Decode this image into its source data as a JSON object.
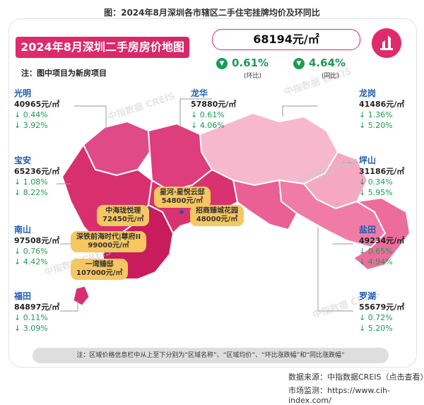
{
  "figure_title": "图：2024年8月深圳各市辖区二手住宅挂牌均价及环同比",
  "banner_title": "2024年8月深圳二手房房价地图",
  "note": "注：图中项目为新房项目",
  "city_average": "68194元/㎡",
  "mom_change": "0.61%",
  "mom_label": "(环比)",
  "yoy_change": "4.64%",
  "yoy_label": "(同比)",
  "down_arrow": "▼",
  "watermark": "中指数据 CREIS",
  "chart_data": {
    "type": "map",
    "title": "2024年8月深圳二手房房价地图",
    "unit": "元/㎡",
    "city_average": 68194,
    "city_mom_pct": -0.61,
    "city_yoy_pct": -4.64,
    "districts": [
      {
        "name": "光明",
        "price": 40965,
        "price_text": "40965元/㎡",
        "mom_text": "↓ 0.44%",
        "yoy_text": "↓ 3.92%",
        "mom": -0.44,
        "yoy": -3.92
      },
      {
        "name": "宝安",
        "price": 65236,
        "price_text": "65236元/㎡",
        "mom_text": "↓ 1.08%",
        "yoy_text": "↓ 8.22%",
        "mom": -1.08,
        "yoy": -8.22
      },
      {
        "name": "南山",
        "price": 97508,
        "price_text": "97508元/㎡",
        "mom_text": "↓ 0.76%",
        "yoy_text": "↓ 4.42%",
        "mom": -0.76,
        "yoy": -4.42
      },
      {
        "name": "福田",
        "price": 84897,
        "price_text": "84897元/㎡",
        "mom_text": "↓ 0.11%",
        "yoy_text": "↓ 3.09%",
        "mom": -0.11,
        "yoy": -3.09
      },
      {
        "name": "龙华",
        "price": 57880,
        "price_text": "57880元/㎡",
        "mom_text": "↓ 0.61%",
        "yoy_text": "↓ 4.06%",
        "mom": -0.61,
        "yoy": -4.06
      },
      {
        "name": "龙岗",
        "price": 41486,
        "price_text": "41486元/㎡",
        "mom_text": "↓ 1.36%",
        "yoy_text": "↓ 5.20%",
        "mom": -1.36,
        "yoy": -5.2
      },
      {
        "name": "坪山",
        "price": 31186,
        "price_text": "31186元/㎡",
        "mom_text": "↓ 0.34%",
        "yoy_text": "↓ 5.95%",
        "mom": -0.34,
        "yoy": -5.95
      },
      {
        "name": "盐田",
        "price": 49234,
        "price_text": "49234元/㎡",
        "mom_text": "↓ 0.65%",
        "yoy_text": "↓ 4.94%",
        "mom": -0.65,
        "yoy": -4.94
      },
      {
        "name": "罗湖",
        "price": 55679,
        "price_text": "55679元/㎡",
        "mom_text": "↓ 0.72%",
        "yoy_text": "↓ 5.20%",
        "mom": -0.72,
        "yoy": -5.2
      }
    ],
    "projects": [
      {
        "name": "星河·星悦云邸",
        "price_text": "54800元/㎡"
      },
      {
        "name": "中海珑悦理",
        "price_text": "72450元/㎡"
      },
      {
        "name": "招商臻城花园",
        "price_text": "48000元/㎡"
      },
      {
        "name": "深铁前海时代|尊府II",
        "price_text": "99000元/㎡"
      },
      {
        "name": "一湾臻邸",
        "price_text": "107000元/㎡"
      }
    ],
    "legend_note": "注：区域价格信息栏中从上至下分别为“区域名称”、“区域均价”、“环比涨跌幅”和“同比涨跌幅”"
  },
  "source": "数据来源：中指数据CREIS（点击查看）",
  "monitor": "市场监测：https://www.cih-index.com/"
}
